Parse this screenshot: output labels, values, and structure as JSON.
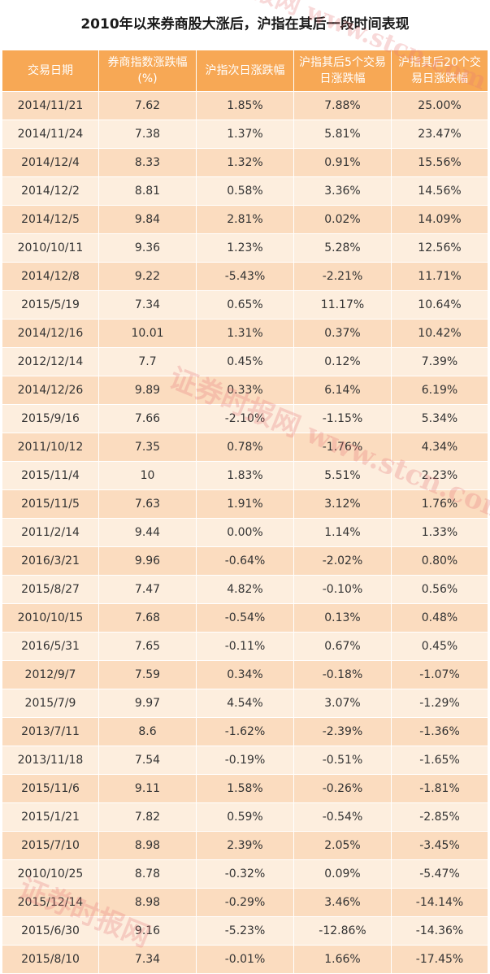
{
  "chart_data": {
    "type": "table",
    "title": "2010年以来券商股大涨后，沪指在其后一段时间表现",
    "columns": [
      "交易日期",
      "券商指数涨跌幅(%)",
      "沪指次日涨跌幅",
      "沪指其后5个交易日涨跌幅",
      "沪指其后20个交易日涨跌幅"
    ],
    "rows": [
      [
        "2014/11/21",
        "7.62",
        "1.85%",
        "7.88%",
        "25.00%"
      ],
      [
        "2014/11/24",
        "7.38",
        "1.37%",
        "5.81%",
        "23.47%"
      ],
      [
        "2014/12/4",
        "8.33",
        "1.32%",
        "0.91%",
        "15.56%"
      ],
      [
        "2014/12/2",
        "8.81",
        "0.58%",
        "3.36%",
        "14.56%"
      ],
      [
        "2014/12/5",
        "9.84",
        "2.81%",
        "0.02%",
        "14.09%"
      ],
      [
        "2010/10/11",
        "9.36",
        "1.23%",
        "5.28%",
        "12.56%"
      ],
      [
        "2014/12/8",
        "9.22",
        "-5.43%",
        "-2.21%",
        "11.71%"
      ],
      [
        "2015/5/19",
        "7.34",
        "0.65%",
        "11.17%",
        "10.64%"
      ],
      [
        "2014/12/16",
        "10.01",
        "1.31%",
        "0.37%",
        "10.42%"
      ],
      [
        "2012/12/14",
        "7.7",
        "0.45%",
        "0.12%",
        "7.39%"
      ],
      [
        "2014/12/26",
        "9.89",
        "0.33%",
        "6.14%",
        "6.19%"
      ],
      [
        "2015/9/16",
        "7.66",
        "-2.10%",
        "-1.15%",
        "5.34%"
      ],
      [
        "2011/10/12",
        "7.35",
        "0.78%",
        "-1.76%",
        "4.34%"
      ],
      [
        "2015/11/4",
        "10",
        "1.83%",
        "5.51%",
        "2.23%"
      ],
      [
        "2015/11/5",
        "7.63",
        "1.91%",
        "3.12%",
        "1.76%"
      ],
      [
        "2011/2/14",
        "9.44",
        "0.00%",
        "1.14%",
        "1.33%"
      ],
      [
        "2016/3/21",
        "9.96",
        "-0.64%",
        "-2.02%",
        "0.80%"
      ],
      [
        "2015/8/27",
        "7.47",
        "4.82%",
        "-0.10%",
        "0.56%"
      ],
      [
        "2010/10/15",
        "7.68",
        "-0.54%",
        "0.13%",
        "0.48%"
      ],
      [
        "2016/5/31",
        "7.65",
        "-0.11%",
        "0.67%",
        "0.45%"
      ],
      [
        "2012/9/7",
        "7.59",
        "0.34%",
        "-0.18%",
        "-1.07%"
      ],
      [
        "2015/7/9",
        "9.97",
        "4.54%",
        "3.07%",
        "-1.29%"
      ],
      [
        "2013/7/11",
        "8.6",
        "-1.62%",
        "-2.39%",
        "-1.36%"
      ],
      [
        "2013/11/18",
        "7.54",
        "-0.19%",
        "-0.51%",
        "-1.65%"
      ],
      [
        "2015/11/6",
        "9.11",
        "1.58%",
        "-0.26%",
        "-1.81%"
      ],
      [
        "2015/1/21",
        "7.82",
        "0.59%",
        "-0.54%",
        "-2.85%"
      ],
      [
        "2015/7/10",
        "8.98",
        "2.39%",
        "2.05%",
        "-3.45%"
      ],
      [
        "2010/10/25",
        "8.78",
        "-0.32%",
        "0.09%",
        "-5.47%"
      ],
      [
        "2015/12/14",
        "8.98",
        "-0.29%",
        "3.46%",
        "-14.14%"
      ],
      [
        "2015/6/30",
        "9.16",
        "-5.23%",
        "-12.86%",
        "-14.36%"
      ],
      [
        "2015/8/10",
        "7.34",
        "-0.01%",
        "1.66%",
        "-17.45%"
      ]
    ]
  },
  "watermark": {
    "top": "证券时报网 www.stcn.com",
    "middle": "证券时报网 www.stcn.com",
    "bottom": "证券时报网"
  },
  "colors": {
    "header_bg": "#f7a855",
    "row_dark": "#fbdcbf",
    "row_light": "#fdeede"
  }
}
